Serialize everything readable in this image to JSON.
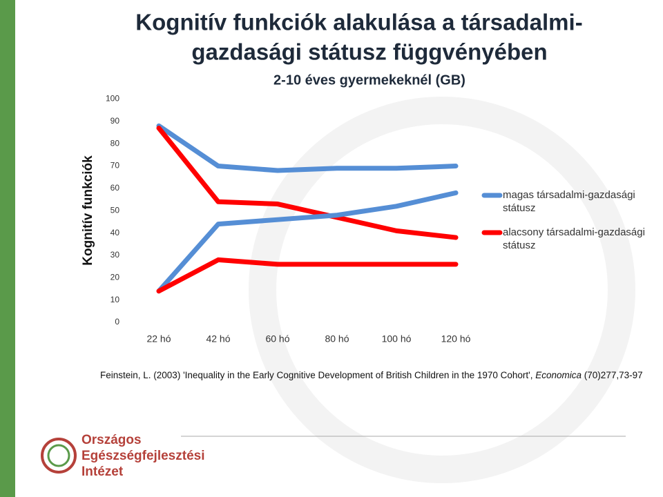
{
  "chart_data": {
    "type": "line",
    "title_lines": [
      "Kognitív funkciók alakulása a társadalmi-",
      "gazdasági státusz függvényében"
    ],
    "subtitle": "2-10 éves gyermekeknél (GB)",
    "y_label": "Kognitív funkciók",
    "categories": [
      "22 hó",
      "42 hó",
      "60 hó",
      "80 hó",
      "100 hó",
      "120 hó"
    ],
    "series": [
      {
        "name": "magas társadalmi-gazdasági státusz",
        "color": "#558ed5",
        "values": [
          88,
          70,
          68,
          69,
          69,
          70
        ]
      },
      {
        "name": "alacsony társadalmi-gazdasági státusz",
        "color": "#ff0000",
        "values": [
          87,
          54,
          53,
          47,
          41,
          38
        ]
      },
      {
        "color": "#558ed5",
        "values": [
          14,
          44,
          46,
          48,
          52,
          58
        ]
      },
      {
        "color": "#ff0000",
        "values": [
          14,
          28,
          26,
          26,
          26,
          26
        ]
      }
    ],
    "ylim": [
      0,
      100
    ],
    "yticks": [
      0,
      10,
      20,
      30,
      40,
      50,
      60,
      70,
      80,
      90,
      100
    ],
    "grid": false,
    "legend": "right"
  },
  "citation": {
    "before": "Feinstein, L. (2003) 'Inequality in the Early Cognitive Development of British Children in the 1970 Cohort', ",
    "journal": "Economica",
    "after": " (70)277,73-97"
  },
  "logo": {
    "lines": [
      "Országos",
      "Egészségfejlesztési",
      "Intézet"
    ]
  }
}
